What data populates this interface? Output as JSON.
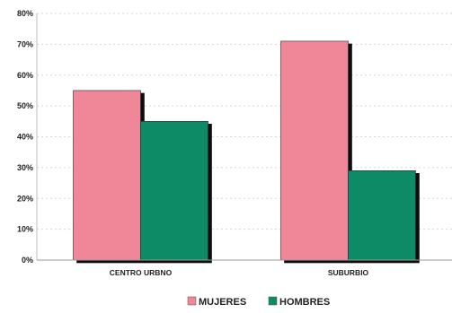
{
  "chart_data": {
    "type": "bar",
    "categories": [
      "CENTRO URBNO",
      "SUBURBIO"
    ],
    "series": [
      {
        "name": "MUJERES",
        "values": [
          55,
          71
        ],
        "color": "#ef8798"
      },
      {
        "name": "HOMBRES",
        "values": [
          45,
          29
        ],
        "color": "#0f8a66"
      }
    ],
    "y_ticks": [
      "0%",
      "10%",
      "20%",
      "30%",
      "40%",
      "50%",
      "60%",
      "70%",
      "80%"
    ],
    "ylim": [
      0,
      80
    ],
    "y_unit": "%",
    "grid": true,
    "legend_position": "bottom"
  }
}
